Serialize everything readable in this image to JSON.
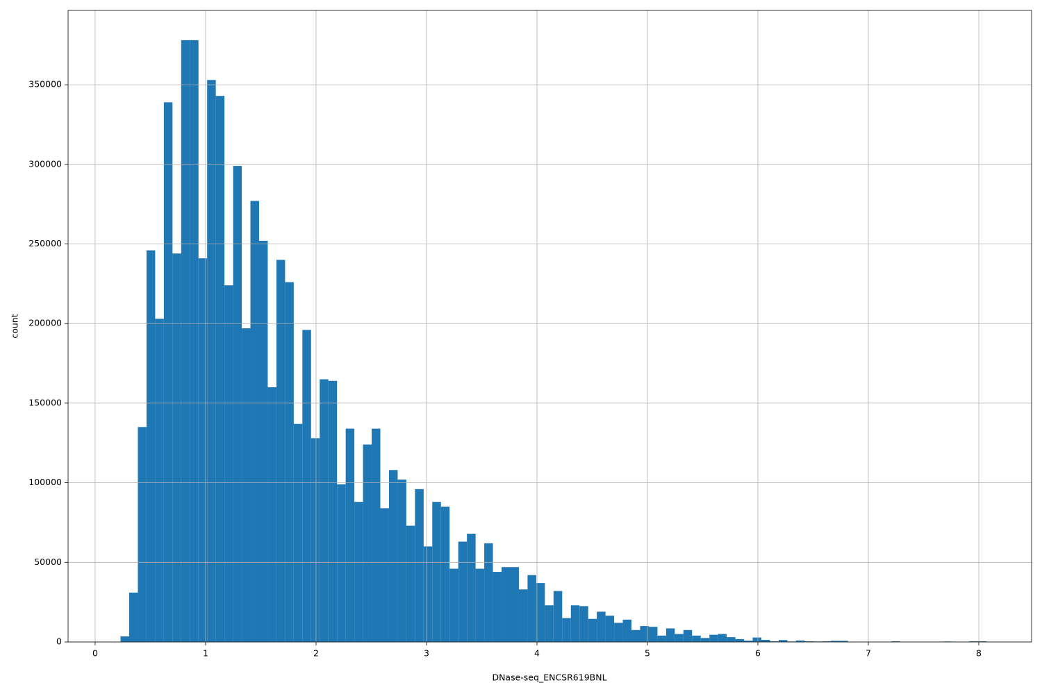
{
  "chart_data": {
    "type": "histogram",
    "x_label": "DNase-seq_ENCSR619BNL",
    "y_label": "count",
    "color": "#1f77b4",
    "grid": true,
    "bins": [
      0.23,
      0.3084,
      0.3868,
      0.4652,
      0.5436,
      0.622,
      0.7004,
      0.7788,
      0.8572,
      0.9356,
      1.014,
      1.0924,
      1.1708,
      1.2492,
      1.3276,
      1.406,
      1.4844,
      1.5628,
      1.6412,
      1.7196,
      1.798,
      1.8764,
      1.9548,
      2.0332,
      2.1116,
      2.19,
      2.2684,
      2.3468,
      2.4252,
      2.5036,
      2.582,
      2.6604,
      2.7388,
      2.8172,
      2.8956,
      2.974,
      3.0524,
      3.1308,
      3.2092,
      3.2876,
      3.366,
      3.4444,
      3.5228,
      3.6012,
      3.6796,
      3.758,
      3.8364,
      3.9148,
      3.9932,
      4.0716,
      4.15,
      4.2284,
      4.3068,
      4.3852,
      4.4636,
      4.542,
      4.6204,
      4.6988,
      4.7772,
      4.8556,
      4.934,
      5.0124,
      5.0908,
      5.1692,
      5.2476,
      5.326,
      5.4044,
      5.4828,
      5.5612,
      5.6396,
      5.718,
      5.7964,
      5.8748,
      5.9532,
      6.0316,
      6.11,
      6.1884,
      6.2668,
      6.3452,
      6.4236,
      6.502,
      6.5804,
      6.6588,
      6.7372,
      6.8156,
      6.894,
      6.9724,
      7.0508,
      7.1292,
      7.2076,
      7.286,
      7.3644,
      7.4428,
      7.5212,
      7.5996,
      7.678,
      7.7564,
      7.8348,
      7.9132,
      7.9916,
      8.07
    ],
    "counts": [
      3500,
      31000,
      135000,
      246000,
      203000,
      339000,
      244000,
      378000,
      378000,
      241000,
      353000,
      343000,
      224000,
      299000,
      197000,
      277000,
      252000,
      160000,
      240000,
      226000,
      137000,
      196000,
      128000,
      165000,
      164000,
      99000,
      134000,
      88000,
      124000,
      134000,
      84000,
      108000,
      102000,
      73000,
      96000,
      60000,
      88000,
      85000,
      46000,
      63000,
      68000,
      46000,
      62000,
      44000,
      47000,
      47000,
      33000,
      42000,
      37000,
      23000,
      32000,
      15000,
      23000,
      22500,
      14500,
      19000,
      16500,
      12000,
      14000,
      7500,
      10000,
      9500,
      4000,
      8500,
      5000,
      7500,
      4000,
      2500,
      4500,
      5000,
      3000,
      1800,
      800,
      2800,
      1300,
      400,
      1200,
      300,
      900,
      400,
      300,
      400,
      700,
      700,
      100,
      0,
      0,
      0,
      0,
      400,
      0,
      0,
      0,
      0,
      0,
      300,
      0,
      0,
      400,
      400
    ],
    "xlim": [
      -0.245,
      8.478
    ],
    "xticks": [
      0,
      1,
      2,
      3,
      4,
      5,
      6,
      7,
      8
    ],
    "ylim": [
      0,
      396700
    ],
    "yticks": [
      0,
      50000,
      100000,
      150000,
      200000,
      250000,
      300000,
      350000
    ]
  }
}
